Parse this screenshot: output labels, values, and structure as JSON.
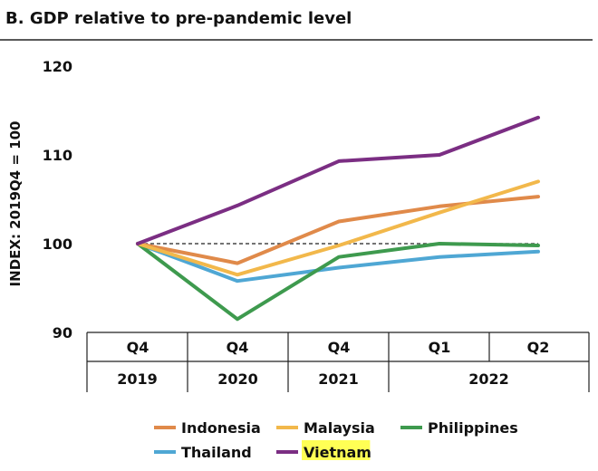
{
  "chart_data": {
    "type": "line",
    "title": "B. GDP relative to pre-pandemic level",
    "ylabel": "INDEX: 2019Q4 = 100",
    "ylim": [
      90,
      120
    ],
    "yticks": [
      "90",
      "100",
      "110",
      "120"
    ],
    "quarters": [
      "Q4",
      "Q4",
      "Q4",
      "Q1",
      "Q2"
    ],
    "years": [
      "2019",
      "2020",
      "2021",
      "2022"
    ],
    "reference_line": 100,
    "series": [
      {
        "name": "Indonesia",
        "color": "#E08A4A",
        "values": [
          100,
          97.8,
          102.5,
          104.2,
          105.3
        ]
      },
      {
        "name": "Malaysia",
        "color": "#F2B84B",
        "values": [
          100,
          96.5,
          99.8,
          103.5,
          107.0
        ]
      },
      {
        "name": "Philippines",
        "color": "#3E9A4E",
        "values": [
          100,
          91.5,
          98.5,
          100.0,
          99.8
        ]
      },
      {
        "name": "Thailand",
        "color": "#4FA7D4",
        "values": [
          100,
          95.8,
          97.3,
          98.5,
          99.1
        ]
      },
      {
        "name": "Vietnam",
        "color": "#7B2E83",
        "values": [
          100,
          104.3,
          109.3,
          110.0,
          114.2
        ],
        "highlight": "#FFFF55"
      }
    ]
  }
}
